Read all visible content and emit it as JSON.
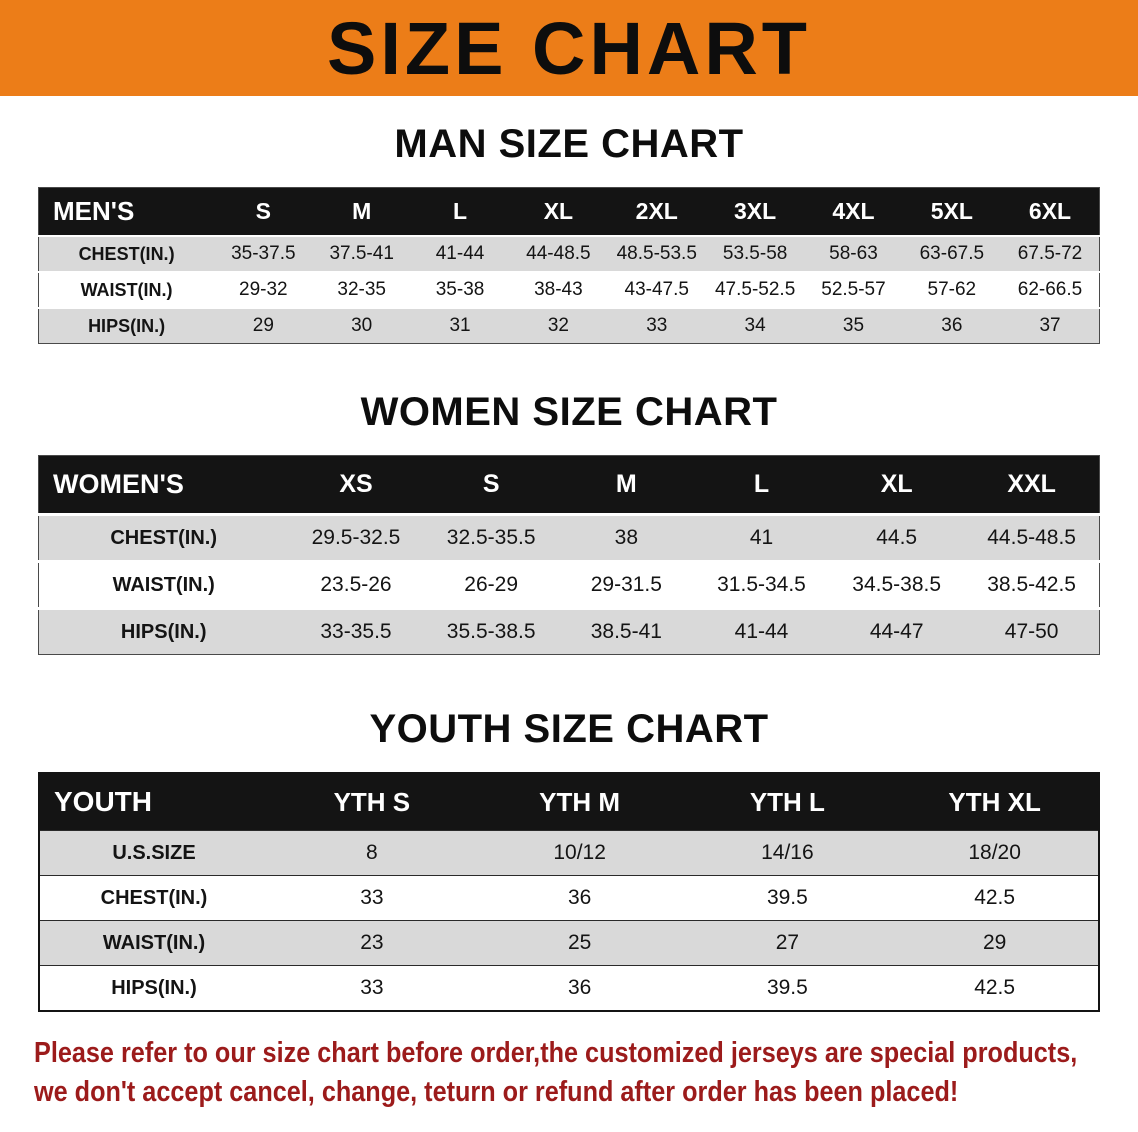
{
  "banner": {
    "title": "SIZE CHART"
  },
  "disclaimer": {
    "line1": "Please refer to our size chart before order,the customized jerseys are special products,",
    "line2": "we don't accept cancel, change, teturn or refund after order has been placed!"
  },
  "colors": {
    "banner_orange": "#ec7d18",
    "table_header_black": "#141414",
    "row_stripe_gray": "#d9d9d9",
    "disclaimer_red": "#9c1b1b"
  },
  "chart_data": [
    {
      "type": "table",
      "title": "MAN SIZE CHART",
      "header": [
        "MEN'S",
        "S",
        "M",
        "L",
        "XL",
        "2XL",
        "3XL",
        "4XL",
        "5XL",
        "6XL"
      ],
      "rows": [
        [
          "CHEST(IN.)",
          "35-37.5",
          "37.5-41",
          "41-44",
          "44-48.5",
          "48.5-53.5",
          "53.5-58",
          "58-63",
          "63-67.5",
          "67.5-72"
        ],
        [
          "WAIST(IN.)",
          "29-32",
          "32-35",
          "35-38",
          "38-43",
          "43-47.5",
          "47.5-52.5",
          "52.5-57",
          "57-62",
          "62-66.5"
        ],
        [
          "HIPS(IN.)",
          "29",
          "30",
          "31",
          "32",
          "33",
          "34",
          "35",
          "36",
          "37"
        ]
      ]
    },
    {
      "type": "table",
      "title": "WOMEN SIZE CHART",
      "header": [
        "WOMEN'S",
        "XS",
        "S",
        "M",
        "L",
        "XL",
        "XXL"
      ],
      "rows": [
        [
          "CHEST(IN.)",
          "29.5-32.5",
          "32.5-35.5",
          "38",
          "41",
          "44.5",
          "44.5-48.5"
        ],
        [
          "WAIST(IN.)",
          "23.5-26",
          "26-29",
          "29-31.5",
          "31.5-34.5",
          "34.5-38.5",
          "38.5-42.5"
        ],
        [
          "HIPS(IN.)",
          "33-35.5",
          "35.5-38.5",
          "38.5-41",
          "41-44",
          "44-47",
          "47-50"
        ]
      ]
    },
    {
      "type": "table",
      "title": "YOUTH SIZE CHART",
      "header": [
        "YOUTH",
        "YTH S",
        "YTH M",
        "YTH L",
        "YTH XL"
      ],
      "rows": [
        [
          "U.S.SIZE",
          "8",
          "10/12",
          "14/16",
          "18/20"
        ],
        [
          "CHEST(IN.)",
          "33",
          "36",
          "39.5",
          "42.5"
        ],
        [
          "WAIST(IN.)",
          "23",
          "25",
          "27",
          "29"
        ],
        [
          "HIPS(IN.)",
          "33",
          "36",
          "39.5",
          "42.5"
        ]
      ]
    }
  ]
}
